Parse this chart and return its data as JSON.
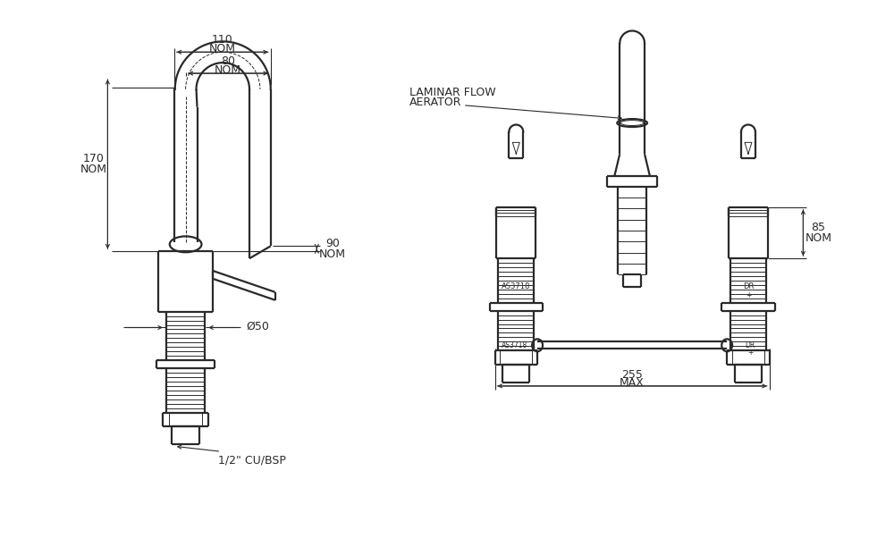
{
  "bg_color": "#ffffff",
  "line_color": "#2a2a2a",
  "dim_color": "#2a2a2a",
  "text_color": "#2a2a2a",
  "annotations": {
    "dim_110": "110",
    "nom_110": "NOM",
    "dim_80": "80",
    "nom_80": "NOM",
    "dim_170": "170",
    "nom_170": "NOM",
    "dim_90": "90",
    "nom_90": "NOM",
    "dim_50": "Ø50",
    "label_cu_bsp": "1/2\" CU/BSP",
    "laminar_flow": "LAMINAR FLOW",
    "aerator": "AERATOR",
    "dim_255": "255",
    "max_255": "MAX",
    "dim_85": "85",
    "nom_85": "NOM"
  },
  "font_size_dim": 9.0,
  "font_size_label": 9.0
}
